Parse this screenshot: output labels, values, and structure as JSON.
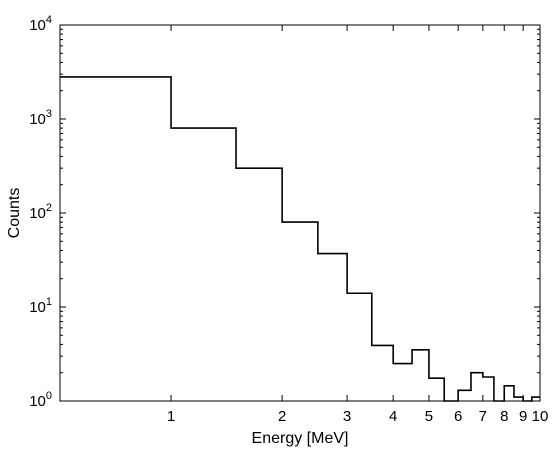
{
  "chart_data": {
    "type": "step",
    "title": "",
    "xlabel": "Energy [MeV]",
    "ylabel": "Counts",
    "x_scale": "log",
    "y_scale": "log",
    "xlim": [
      0.5,
      10
    ],
    "ylim": [
      1,
      10000
    ],
    "grid": false,
    "line_color": "#000000",
    "x_ticks": [
      {
        "value": 1,
        "label": "1"
      },
      {
        "value": 2,
        "label": "2"
      },
      {
        "value": 3,
        "label": "3"
      },
      {
        "value": 4,
        "label": "4"
      },
      {
        "value": 5,
        "label": "5"
      },
      {
        "value": 6,
        "label": "6"
      },
      {
        "value": 7,
        "label": "7"
      },
      {
        "value": 8,
        "label": "8"
      },
      {
        "value": 9,
        "label": "9"
      },
      {
        "value": 10,
        "label": "10"
      }
    ],
    "y_ticks": [
      {
        "value": 1,
        "base": "10",
        "exp": "0"
      },
      {
        "value": 10,
        "base": "10",
        "exp": "1"
      },
      {
        "value": 100,
        "base": "10",
        "exp": "2"
      },
      {
        "value": 1000,
        "base": "10",
        "exp": "3"
      },
      {
        "value": 10000,
        "base": "10",
        "exp": "4"
      }
    ],
    "bins": [
      {
        "x0": 0.5,
        "x1": 1.0,
        "count": 2800
      },
      {
        "x0": 1.0,
        "x1": 1.5,
        "count": 800
      },
      {
        "x0": 1.5,
        "x1": 2.0,
        "count": 300
      },
      {
        "x0": 2.0,
        "x1": 2.5,
        "count": 80
      },
      {
        "x0": 2.5,
        "x1": 3.0,
        "count": 37
      },
      {
        "x0": 3.0,
        "x1": 3.5,
        "count": 14
      },
      {
        "x0": 3.5,
        "x1": 4.0,
        "count": 3.9
      },
      {
        "x0": 4.0,
        "x1": 4.5,
        "count": 2.5
      },
      {
        "x0": 4.5,
        "x1": 5.0,
        "count": 3.5
      },
      {
        "x0": 5.0,
        "x1": 5.5,
        "count": 1.75
      },
      {
        "x0": 5.5,
        "x1": 6.0,
        "count": 1.0
      },
      {
        "x0": 6.0,
        "x1": 6.5,
        "count": 1.3
      },
      {
        "x0": 6.5,
        "x1": 7.0,
        "count": 2.0
      },
      {
        "x0": 7.0,
        "x1": 7.5,
        "count": 1.8
      },
      {
        "x0": 7.5,
        "x1": 8.0,
        "count": 1.0
      },
      {
        "x0": 8.0,
        "x1": 8.5,
        "count": 1.45
      },
      {
        "x0": 8.5,
        "x1": 9.0,
        "count": 1.1
      },
      {
        "x0": 9.0,
        "x1": 9.5,
        "count": 1.0
      },
      {
        "x0": 9.5,
        "x1": 10.0,
        "count": 1.1
      }
    ]
  }
}
